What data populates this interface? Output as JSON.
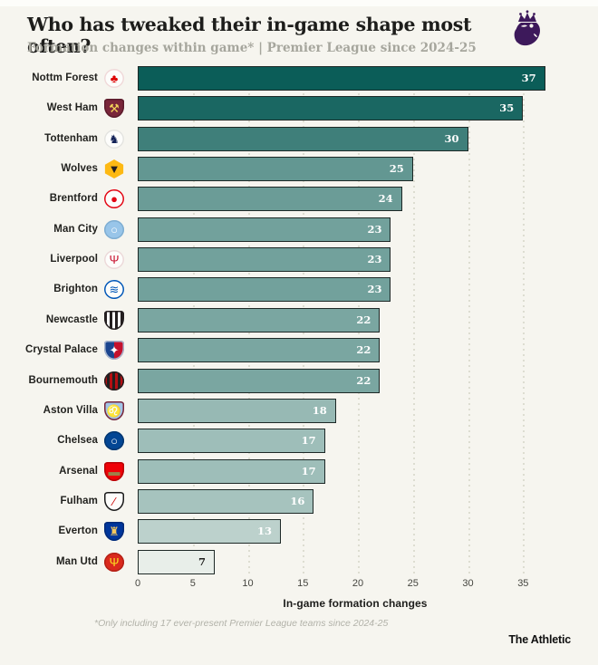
{
  "header": {
    "title": "Who has tweaked their in-game shape most often?",
    "subtitle": "Formation changes within game* | Premier League since 2024-25",
    "logo": "premier-league-lion",
    "logo_color": "#3d195b"
  },
  "chart_data": {
    "type": "bar",
    "orientation": "horizontal",
    "title": "Who has tweaked their in-game shape most often?",
    "subtitle": "Formation changes within game* | Premier League since 2024-25",
    "xlabel": "In-game formation changes",
    "categories": [
      "Nottm Forest",
      "West Ham",
      "Tottenham",
      "Wolves",
      "Brentford",
      "Man City",
      "Liverpool",
      "Brighton",
      "Newcastle",
      "Crystal Palace",
      "Bournemouth",
      "Aston Villa",
      "Chelsea",
      "Arsenal",
      "Fulham",
      "Everton",
      "Man Utd"
    ],
    "values": [
      37,
      35,
      30,
      25,
      24,
      23,
      23,
      23,
      22,
      22,
      22,
      18,
      17,
      17,
      16,
      13,
      7
    ],
    "xlim": [
      0,
      39.5
    ],
    "xticks": [
      0,
      5,
      10,
      15,
      20,
      25,
      30,
      35
    ],
    "grid": "dotted-vertical",
    "legend": "none",
    "color_scale": {
      "min_value": 7,
      "max_value": 37,
      "light": "#e8eee9",
      "dark": "#0b5d58",
      "bar_border": "#1d2826",
      "value_label_light": "#ffffff",
      "value_label_dark": "#1f1f1d"
    },
    "crests": [
      {
        "team": "Nottm Forest",
        "shape": "circle",
        "bg": "#fdfdfb",
        "fg": "#dd0000",
        "glyph": "♣",
        "border": "#f0d9d9"
      },
      {
        "team": "West Ham",
        "shape": "shield",
        "bg": "#7a263a",
        "fg": "#f3d459",
        "glyph": "⚒",
        "border": "#5c1c2c"
      },
      {
        "team": "Tottenham",
        "shape": "circle",
        "bg": "#fdfdfb",
        "fg": "#132257",
        "glyph": "♞",
        "border": "#e4e4e0"
      },
      {
        "team": "Wolves",
        "shape": "hex",
        "bg": "#fdb913",
        "fg": "#231f20",
        "glyph": "▼",
        "border": "#231f20"
      },
      {
        "team": "Brentford",
        "shape": "circle",
        "bg": "#fdfdfb",
        "fg": "#e30613",
        "glyph": "●",
        "border": "#e30613"
      },
      {
        "team": "Man City",
        "shape": "circle",
        "bg": "#98c5e9",
        "fg": "#ffffff",
        "glyph": "○",
        "border": "#7faed2"
      },
      {
        "team": "Liverpool",
        "shape": "circle",
        "bg": "#fdfdfb",
        "fg": "#c8102e",
        "glyph": "Ψ",
        "border": "#ecd9d9"
      },
      {
        "team": "Brighton",
        "shape": "circle",
        "bg": "#fdfdfb",
        "fg": "#0057b8",
        "glyph": "≋",
        "border": "#0057b8"
      },
      {
        "team": "Newcastle",
        "shape": "shield",
        "bg": "repeating-linear-gradient(90deg,#241f20 0 3px,#ffffff 3px 6px)",
        "fg": "#f5f5f5",
        "glyph": "",
        "border": "#241f20"
      },
      {
        "team": "Crystal Palace",
        "shape": "shield",
        "bg": "linear-gradient(90deg,#1b458f 0 50%,#c4122e 50% 100%)",
        "fg": "#ffffff",
        "glyph": "✦",
        "border": "#a7b6cf"
      },
      {
        "team": "Bournemouth",
        "shape": "circle",
        "bg": "repeating-linear-gradient(90deg,#b50e12 0 3px,#231f20 3px 6px)",
        "fg": "#ffffff",
        "glyph": "",
        "border": "#231f20"
      },
      {
        "team": "Aston Villa",
        "shape": "shield",
        "bg": "#a3c6e8",
        "fg": "#7a263a",
        "glyph": "♌",
        "border": "#7a263a"
      },
      {
        "team": "Chelsea",
        "shape": "circle",
        "bg": "#034694",
        "fg": "#ffffff",
        "glyph": "○",
        "border": "#02366f"
      },
      {
        "team": "Arsenal",
        "shape": "shield",
        "bg": "#ef0107",
        "fg": "#9c824a",
        "glyph": "▬",
        "border": "#b80005"
      },
      {
        "team": "Fulham",
        "shape": "shield",
        "bg": "#fdfdfb",
        "fg": "#cc0000",
        "glyph": "∕",
        "border": "#1a1a1a"
      },
      {
        "team": "Everton",
        "shape": "shield",
        "bg": "#00369c",
        "fg": "#f5c85e",
        "glyph": "♜",
        "border": "#002a77"
      },
      {
        "team": "Man Utd",
        "shape": "circle",
        "bg": "#da291c",
        "fg": "#fbe122",
        "glyph": "Ψ",
        "border": "#b32117"
      }
    ]
  },
  "footer": {
    "footnote": "*Only including 17 ever-present Premier League teams since 2024-25",
    "brand": "The Athletic"
  }
}
